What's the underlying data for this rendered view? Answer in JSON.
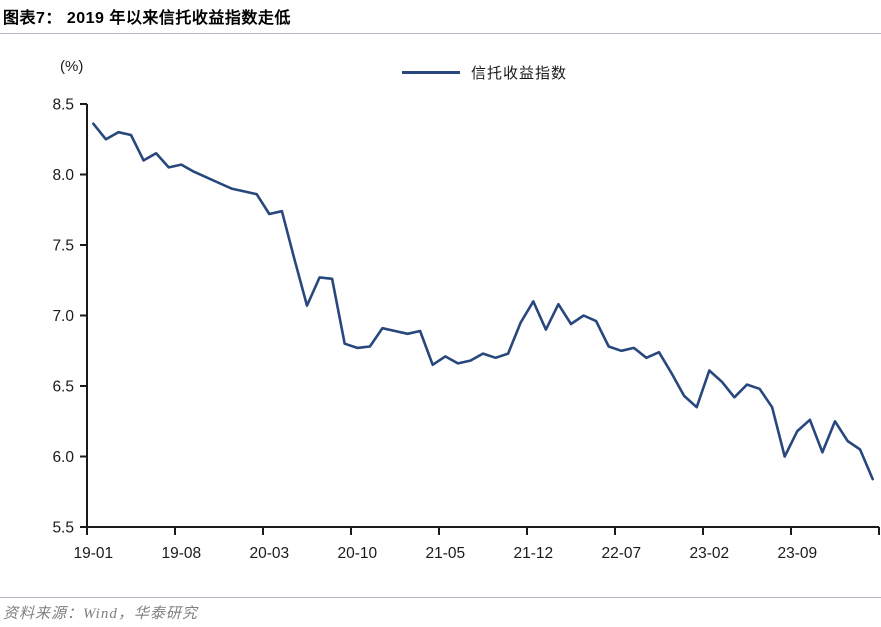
{
  "header": {
    "title": "图表7： 2019 年以来信托收益指数走低"
  },
  "footer": {
    "source": "资料来源：Wind，华泰研究"
  },
  "chart_data": {
    "type": "line",
    "title": "图表7： 2019 年以来信托收益指数走低",
    "unit_label": "(%)",
    "legend_position": "top-center",
    "grid": false,
    "ylim": [
      5.5,
      8.5
    ],
    "y_ticks": [
      8.5,
      8.0,
      7.5,
      7.0,
      6.5,
      6.0,
      5.5
    ],
    "x_tick_labels": [
      "19-01",
      "19-08",
      "20-03",
      "20-10",
      "21-05",
      "21-12",
      "22-07",
      "23-02",
      "23-09"
    ],
    "x": [
      "19-01",
      "19-02",
      "19-03",
      "19-04",
      "19-05",
      "19-06",
      "19-07",
      "19-08",
      "19-09",
      "19-10",
      "19-11",
      "19-12",
      "20-01",
      "20-02",
      "20-03",
      "20-04",
      "20-05",
      "20-06",
      "20-07",
      "20-08",
      "20-09",
      "20-10",
      "20-11",
      "20-12",
      "21-01",
      "21-02",
      "21-03",
      "21-04",
      "21-05",
      "21-06",
      "21-07",
      "21-08",
      "21-09",
      "21-10",
      "21-11",
      "21-12",
      "22-01",
      "22-02",
      "22-03",
      "22-04",
      "22-05",
      "22-06",
      "22-07",
      "22-08",
      "22-09",
      "22-10",
      "22-11",
      "22-12",
      "23-01",
      "23-02",
      "23-03",
      "23-04",
      "23-05",
      "23-06",
      "23-07",
      "23-08",
      "23-09",
      "23-10",
      "23-11",
      "23-12",
      "24-01",
      "24-02",
      "24-03"
    ],
    "series": [
      {
        "name": "信托收益指数",
        "values": [
          8.36,
          8.25,
          8.3,
          8.28,
          8.1,
          8.15,
          8.05,
          8.07,
          8.02,
          7.98,
          7.94,
          7.9,
          7.88,
          7.86,
          7.72,
          7.74,
          7.4,
          7.07,
          7.27,
          7.26,
          6.8,
          6.77,
          6.78,
          6.91,
          6.89,
          6.87,
          6.89,
          6.65,
          6.71,
          6.66,
          6.68,
          6.73,
          6.7,
          6.73,
          6.95,
          7.1,
          6.9,
          7.08,
          6.94,
          7.0,
          6.96,
          6.78,
          6.75,
          6.77,
          6.7,
          6.74,
          6.59,
          6.43,
          6.35,
          6.61,
          6.53,
          6.42,
          6.51,
          6.48,
          6.35,
          6.0,
          6.18,
          6.26,
          6.03,
          6.25,
          6.11,
          6.05,
          5.84
        ]
      }
    ],
    "colors": {
      "line": "#28477D",
      "axis": "#1a1a1a",
      "tick_text": "#1a1a1a",
      "rule": "#b3bac4",
      "source_text": "#7f7f7f"
    }
  }
}
